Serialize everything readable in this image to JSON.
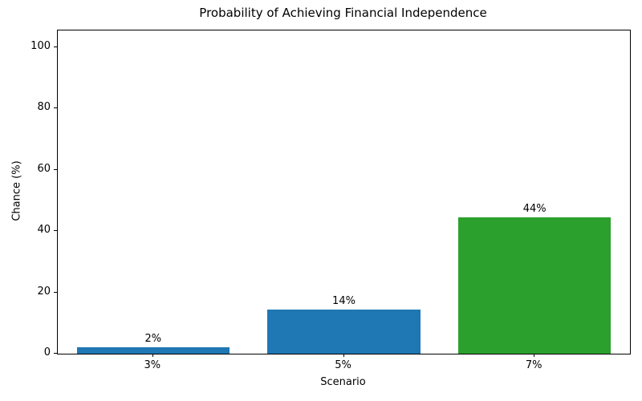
{
  "chart_data": {
    "type": "bar",
    "title": "Probability of Achieving Financial Independence",
    "xlabel": "Scenario",
    "ylabel": "Chance (%)",
    "categories": [
      "3%",
      "5%",
      "7%"
    ],
    "values": [
      2,
      14.3,
      44.4
    ],
    "bar_labels": [
      "2%",
      "14%",
      "44%"
    ],
    "bar_colors": [
      "#1f77b4",
      "#1f77b4",
      "#2ca02c"
    ],
    "ylim": [
      0,
      105.5
    ],
    "yticks": [
      0,
      20,
      40,
      60,
      80,
      100
    ],
    "bar_width_fraction": 0.8,
    "grid": false,
    "legend": null,
    "background": "#ffffff",
    "text_color": "#000000"
  }
}
